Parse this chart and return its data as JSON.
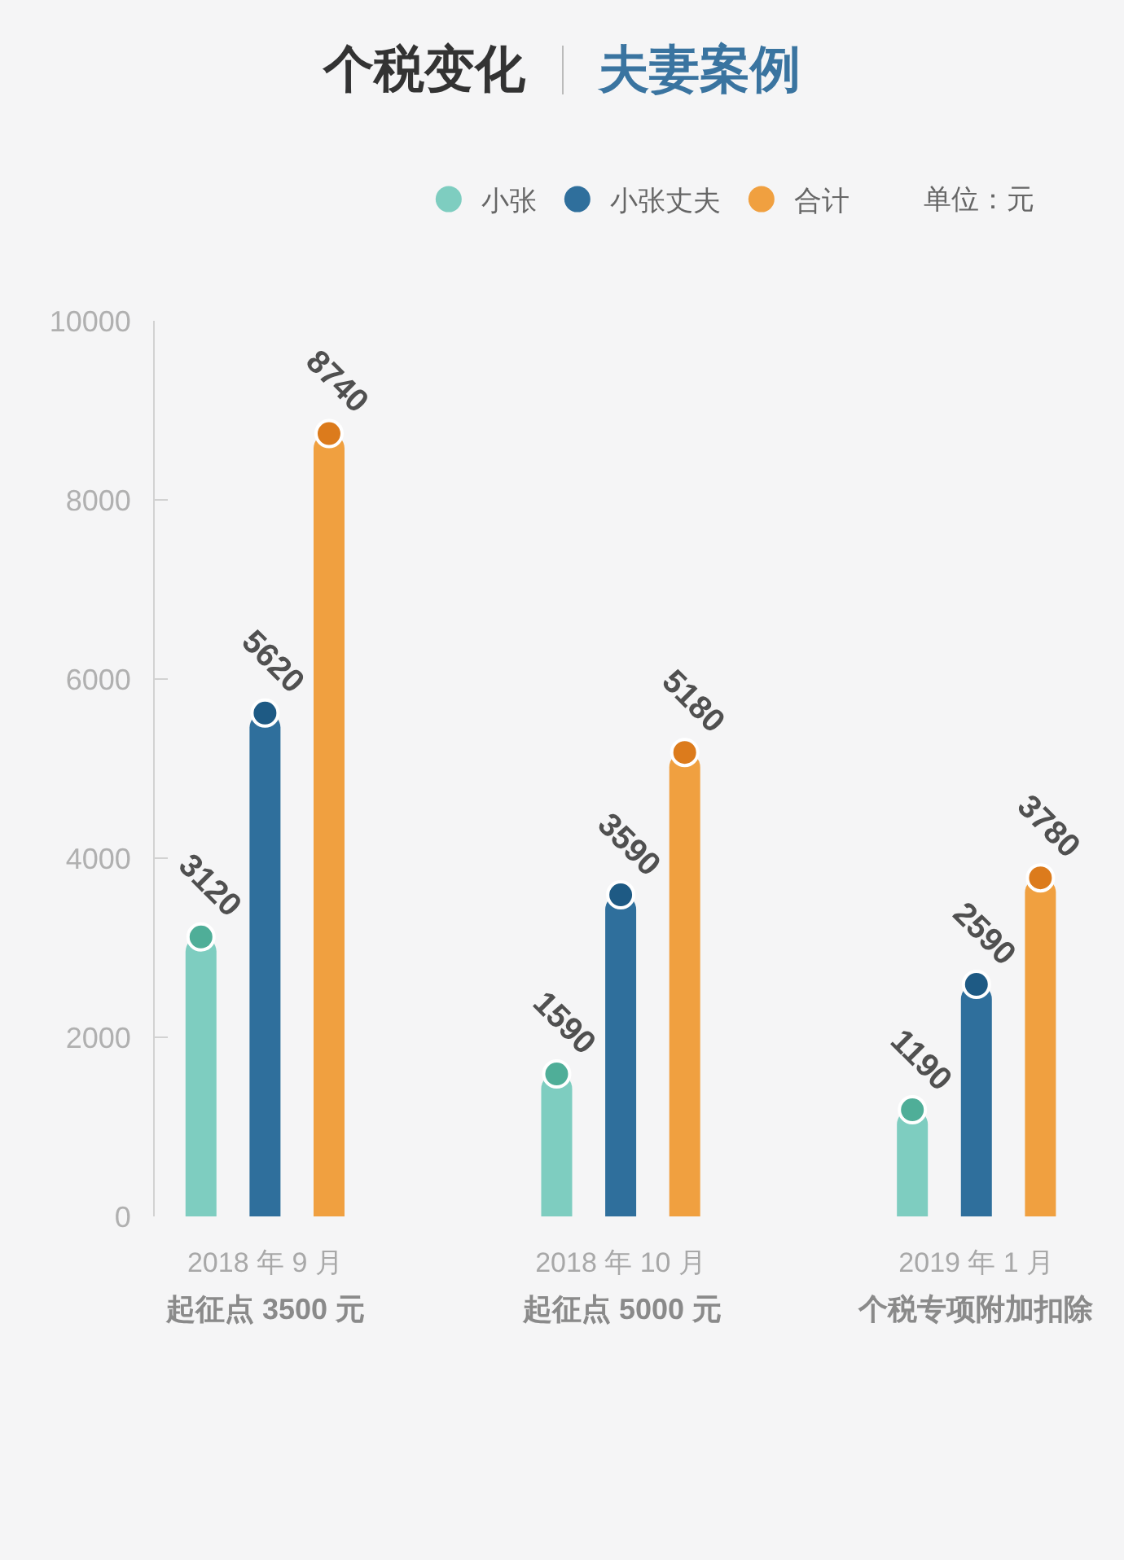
{
  "chart_data": {
    "type": "bar",
    "title": "个税变化",
    "subtitle": "夫妻案例",
    "annotations": [
      "单位：元",
      "起征点 3500 元",
      "起征点 5000 元",
      "个税专项附加扣除"
    ],
    "categories": [
      "2018 年 9 月",
      "2018 年 10 月",
      "2019 年 1 月"
    ],
    "series": [
      {
        "name": "小张",
        "color": "#7ecdc0",
        "values": [
          3120,
          1590,
          1190
        ]
      },
      {
        "name": "小张丈夫",
        "color": "#2f6f9c",
        "values": [
          5620,
          3590,
          2590
        ]
      },
      {
        "name": "合计",
        "color": "#f0a040",
        "values": [
          8740,
          5180,
          3780
        ]
      },
      {
        "type": "scatter",
        "color": "#4fae98",
        "values": [
          3120,
          1590,
          1190
        ],
        "value_labels": [
          "3120",
          "1590",
          "1190"
        ]
      },
      {
        "type": "scatter",
        "color": "#1e5a84",
        "values": [
          5620,
          3590,
          2590
        ],
        "value_labels": [
          "5620",
          "3590",
          "2590"
        ]
      },
      {
        "type": "scatter",
        "color": "#dc7b1c",
        "values": [
          8740,
          5180,
          3780
        ],
        "value_labels": [
          "8740",
          "5180",
          "3780"
        ]
      }
    ],
    "ylim": [
      0,
      10000
    ],
    "yticks": [
      0,
      2000,
      4000,
      6000,
      8000,
      10000
    ],
    "legend": "top right",
    "marker": "circle",
    "grid": false
  }
}
